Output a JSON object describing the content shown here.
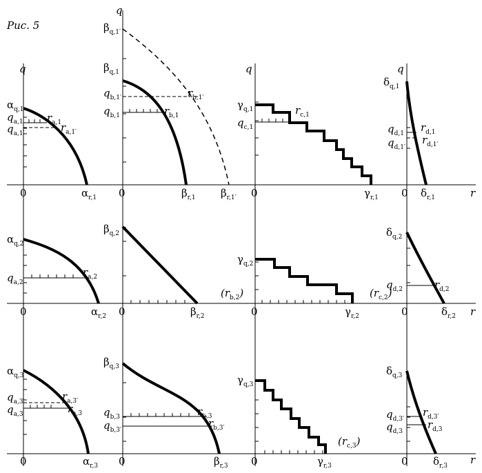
{
  "figure_label": "Рис. 5",
  "axis": {
    "q": "q",
    "r": "r",
    "origin": "0"
  },
  "panels": {
    "a1": {
      "qmax": [
        "α",
        "q,1"
      ],
      "rmax": [
        "α",
        "r,1"
      ],
      "q": [
        "q",
        "a,1"
      ],
      "q_prime": [
        "q",
        "a,1′"
      ],
      "r": [
        "r",
        "a,1"
      ],
      "r_prime": [
        "r",
        "a,1′"
      ]
    },
    "b1": {
      "qmax": [
        "β",
        "q,1"
      ],
      "qmax_prime": [
        "β",
        "q,1′"
      ],
      "rmax": [
        "β",
        "r,1"
      ],
      "rmax_prime": [
        "β",
        "r,1′"
      ],
      "q": [
        "q",
        "b,1"
      ],
      "q_prime": [
        "q",
        "b,1′"
      ],
      "r": [
        "r",
        "b,1"
      ],
      "r_prime": [
        "r",
        "b,1′"
      ]
    },
    "c1": {
      "qmax": [
        "γ",
        "q,1"
      ],
      "rmax": [
        "γ",
        "r,1"
      ],
      "q": [
        "q",
        "c,1"
      ],
      "r": [
        "r",
        "c,1"
      ]
    },
    "d1": {
      "qmax": [
        "δ",
        "q,1"
      ],
      "rmax": [
        "δ",
        "r,1"
      ],
      "q": [
        "q",
        "d,1"
      ],
      "q_prime": [
        "q",
        "d,1′"
      ],
      "r": [
        "r",
        "d,1"
      ],
      "r_prime": [
        "r",
        "d,1′"
      ]
    },
    "a2": {
      "qmax": [
        "α",
        "q,2"
      ],
      "rmax": [
        "α",
        "r,2"
      ],
      "q": [
        "q",
        "a,2"
      ],
      "r": [
        "r",
        "a,2"
      ]
    },
    "b2": {
      "qmax": [
        "β",
        "q,2"
      ],
      "rmax": [
        "β",
        "r,2"
      ],
      "r": [
        "(r",
        "b,2",
        ")"
      ]
    },
    "c2": {
      "qmax": [
        "γ",
        "q,2"
      ],
      "rmax": [
        "γ",
        "r,2"
      ],
      "r": [
        "(r",
        "c,2",
        ")"
      ]
    },
    "d2": {
      "qmax": [
        "δ",
        "q,2"
      ],
      "rmax": [
        "δ",
        "r,2"
      ],
      "q": [
        "q",
        "d,2"
      ],
      "r": [
        "r",
        "d,2"
      ]
    },
    "a3": {
      "qmax": [
        "α",
        "q,3"
      ],
      "rmax": [
        "α",
        "r,3"
      ],
      "q": [
        "q",
        "a,3"
      ],
      "q_prime": [
        "q",
        "a,3′"
      ],
      "r": [
        "r",
        "a,3"
      ],
      "r_prime": [
        "r",
        "a,3′"
      ]
    },
    "b3": {
      "qmax": [
        "β",
        "q,3"
      ],
      "rmax": [
        "β",
        "r,3"
      ],
      "q": [
        "q",
        "b,3"
      ],
      "q_prime": [
        "q",
        "b,3′"
      ],
      "r": [
        "r",
        "b,3"
      ],
      "r_prime": [
        "r",
        "b,3′"
      ]
    },
    "c3": {
      "qmax": [
        "γ",
        "q,3"
      ],
      "rmax": [
        "γ",
        "r,3"
      ],
      "r": [
        "(r",
        "c,3",
        ")"
      ]
    },
    "d3": {
      "qmax": [
        "δ",
        "q,3"
      ],
      "rmax": [
        "δ",
        "r,3"
      ],
      "q": [
        "q",
        "d,3"
      ],
      "q_prime": [
        "q",
        "d,3′"
      ],
      "r": [
        "r",
        "d,3"
      ],
      "r_prime": [
        "r",
        "d,3′"
      ]
    }
  }
}
